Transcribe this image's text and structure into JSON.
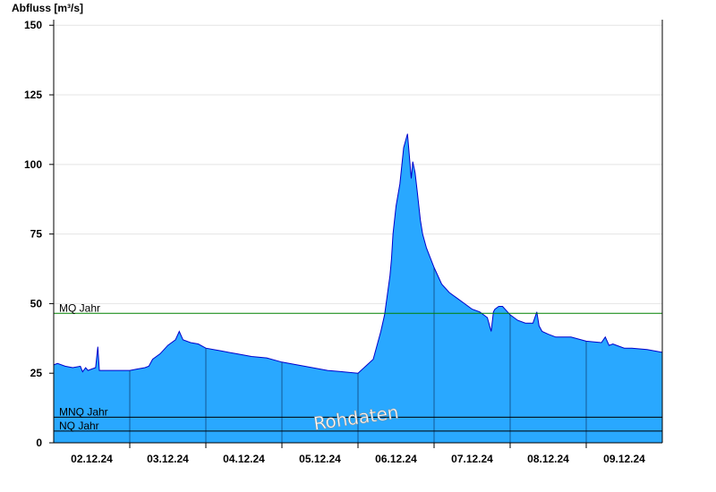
{
  "chart_data": {
    "type": "area",
    "ylabel": "Abfluss [m³/s]",
    "ylim": [
      0,
      152
    ],
    "yticks": [
      0,
      25,
      50,
      75,
      100,
      125,
      150
    ],
    "xlim": [
      0,
      8
    ],
    "categories": [
      "02.12.24",
      "03.12.24",
      "04.12.24",
      "05.12.24",
      "06.12.24",
      "07.12.24",
      "08.12.24",
      "09.12.24"
    ],
    "watermark": "Rohdaten",
    "reference_lines": [
      {
        "name": "MQ Jahr",
        "value": 46.5,
        "color": "#008000"
      },
      {
        "name": "MNQ Jahr",
        "value": 9.2,
        "color": "#000000"
      },
      {
        "name": "NQ Jahr",
        "value": 4.2,
        "color": "#000000"
      }
    ],
    "series": [
      {
        "fill_color": "#29a8ff",
        "line_color": "#0000cc",
        "x": [
          0.0,
          0.05,
          0.15,
          0.25,
          0.35,
          0.38,
          0.42,
          0.45,
          0.5,
          0.55,
          0.58,
          0.6,
          0.65,
          0.75,
          0.85,
          1.0,
          1.1,
          1.2,
          1.25,
          1.3,
          1.4,
          1.5,
          1.6,
          1.65,
          1.7,
          1.8,
          1.9,
          2.0,
          2.2,
          2.4,
          2.6,
          2.8,
          3.0,
          3.2,
          3.4,
          3.6,
          3.8,
          4.0,
          4.2,
          4.3,
          4.35,
          4.4,
          4.42,
          4.44,
          4.46,
          4.5,
          4.55,
          4.6,
          4.65,
          4.7,
          4.72,
          4.75,
          4.78,
          4.8,
          4.82,
          4.85,
          4.9,
          5.0,
          5.1,
          5.2,
          5.3,
          5.4,
          5.5,
          5.6,
          5.7,
          5.75,
          5.78,
          5.8,
          5.85,
          5.9,
          6.0,
          6.1,
          6.2,
          6.3,
          6.35,
          6.38,
          6.42,
          6.5,
          6.6,
          6.8,
          7.0,
          7.2,
          7.25,
          7.3,
          7.35,
          7.4,
          7.5,
          7.6,
          7.8,
          8.0
        ],
        "values": [
          28,
          28.5,
          27.5,
          27,
          27.5,
          25.5,
          27,
          26,
          26.5,
          27,
          34.5,
          26,
          26,
          26,
          26,
          26,
          26.5,
          27,
          27.5,
          30,
          32,
          35,
          37,
          40,
          37,
          36,
          35.5,
          34,
          33,
          32,
          31,
          30.5,
          29,
          28,
          27,
          26,
          25.5,
          25,
          30,
          40,
          46,
          56,
          60,
          66,
          75,
          85,
          93,
          106,
          111,
          95,
          101,
          97,
          90,
          85,
          80,
          75,
          70,
          63,
          57,
          54,
          52,
          50,
          48,
          47,
          45,
          40,
          47,
          48,
          49,
          49,
          46,
          44,
          43,
          43,
          47,
          42,
          40,
          39,
          38,
          38,
          36.5,
          36,
          38,
          35,
          35.5,
          35,
          34,
          34,
          33.5,
          32.5
        ]
      }
    ]
  }
}
